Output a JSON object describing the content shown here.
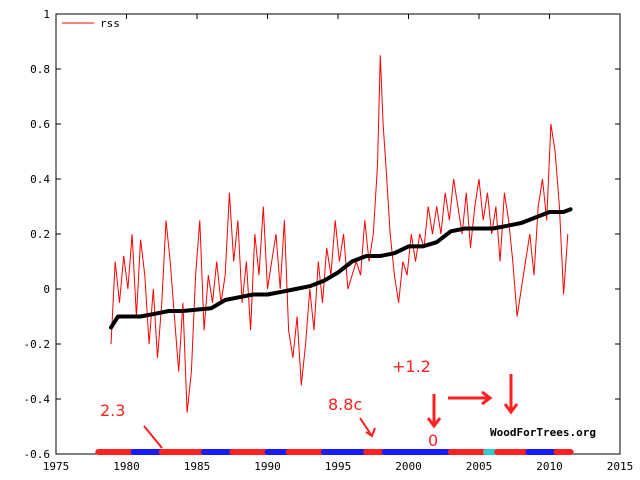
{
  "chart_data": {
    "type": "line",
    "title": "",
    "xlabel": "",
    "ylabel": "",
    "xlim": [
      1975,
      2015
    ],
    "ylim": [
      -0.6,
      1.0
    ],
    "x_ticks": [
      "1975",
      "1980",
      "1985",
      "1990",
      "1995",
      "2000",
      "2005",
      "2010",
      "2015"
    ],
    "y_ticks": [
      "-0.6",
      "-0.4",
      "-0.2",
      "0",
      "0.2",
      "0.4",
      "0.6",
      "0.8",
      "1"
    ],
    "legend": {
      "position": "top-left",
      "entries": [
        "rss"
      ]
    },
    "credit": "WoodForTrees.org",
    "annotations": [
      "2.3",
      "8.8c",
      "+1.2",
      "0"
    ],
    "colors": {
      "rss": "#ff0000",
      "steps": "#000000",
      "bar_red": "#ff2020",
      "bar_blue": "#1a1aff",
      "bar_cyan": "#33cccc"
    },
    "series": [
      {
        "name": "rss",
        "x": [
          1978.9,
          1979.2,
          1979.5,
          1979.8,
          1980.1,
          1980.4,
          1980.7,
          1981.0,
          1981.3,
          1981.6,
          1981.9,
          1982.2,
          1982.5,
          1982.8,
          1983.1,
          1983.4,
          1983.7,
          1984.0,
          1984.3,
          1984.6,
          1984.9,
          1985.2,
          1985.5,
          1985.8,
          1986.1,
          1986.4,
          1986.7,
          1987.0,
          1987.3,
          1987.6,
          1987.9,
          1988.2,
          1988.5,
          1988.8,
          1989.1,
          1989.4,
          1989.7,
          1990.0,
          1990.3,
          1990.6,
          1990.9,
          1991.2,
          1991.5,
          1991.8,
          1992.1,
          1992.4,
          1992.7,
          1993.0,
          1993.3,
          1993.6,
          1993.9,
          1994.2,
          1994.5,
          1994.8,
          1995.1,
          1995.4,
          1995.7,
          1996.0,
          1996.3,
          1996.6,
          1996.9,
          1997.2,
          1997.5,
          1997.8,
          1998.0,
          1998.2,
          1998.4,
          1998.7,
          1999.0,
          1999.3,
          1999.6,
          1999.9,
          2000.2,
          2000.5,
          2000.8,
          2001.1,
          2001.4,
          2001.7,
          2002.0,
          2002.3,
          2002.6,
          2002.9,
          2003.2,
          2003.5,
          2003.8,
          2004.1,
          2004.4,
          2004.7,
          2005.0,
          2005.3,
          2005.6,
          2005.9,
          2006.2,
          2006.5,
          2006.8,
          2007.1,
          2007.4,
          2007.7,
          2008.0,
          2008.3,
          2008.6,
          2008.9,
          2009.2,
          2009.5,
          2009.8,
          2010.1,
          2010.4,
          2010.7,
          2011.0,
          2011.3
        ],
        "values": [
          -0.2,
          0.1,
          -0.05,
          0.12,
          0.0,
          0.2,
          -0.1,
          0.18,
          0.05,
          -0.2,
          0.0,
          -0.25,
          -0.05,
          0.25,
          0.1,
          -0.1,
          -0.3,
          -0.05,
          -0.45,
          -0.3,
          0.05,
          0.25,
          -0.15,
          0.05,
          -0.05,
          0.1,
          -0.05,
          0.05,
          0.35,
          0.1,
          0.25,
          -0.05,
          0.1,
          -0.15,
          0.2,
          0.05,
          0.3,
          0.0,
          0.1,
          0.2,
          0.0,
          0.25,
          -0.15,
          -0.25,
          -0.1,
          -0.35,
          -0.2,
          0.0,
          -0.15,
          0.1,
          -0.05,
          0.15,
          0.05,
          0.25,
          0.1,
          0.2,
          0.0,
          0.05,
          0.1,
          0.05,
          0.25,
          0.1,
          0.2,
          0.45,
          0.85,
          0.6,
          0.45,
          0.2,
          0.05,
          -0.05,
          0.1,
          0.05,
          0.2,
          0.1,
          0.2,
          0.15,
          0.3,
          0.2,
          0.3,
          0.2,
          0.35,
          0.25,
          0.4,
          0.3,
          0.2,
          0.35,
          0.15,
          0.3,
          0.4,
          0.25,
          0.35,
          0.2,
          0.3,
          0.1,
          0.35,
          0.25,
          0.1,
          -0.1,
          0.0,
          0.1,
          0.2,
          0.05,
          0.3,
          0.4,
          0.25,
          0.6,
          0.5,
          0.3,
          -0.02,
          0.2
        ]
      },
      {
        "x": [
          1978.9,
          1979.4,
          1980.0,
          1981.0,
          1982.0,
          1983.0,
          1984.0,
          1985.0,
          1986.0,
          1987.0,
          1988.0,
          1989.0,
          1990.0,
          1991.0,
          1992.0,
          1993.0,
          1994.0,
          1995.0,
          1996.0,
          1997.0,
          1998.0,
          1999.0,
          2000.0,
          2001.0,
          2002.0,
          2003.0,
          2004.0,
          2005.0,
          2006.0,
          2007.0,
          2008.0,
          2009.0,
          2010.0,
          2011.0,
          2011.5
        ],
        "values": [
          -0.14,
          -0.1,
          -0.1,
          -0.1,
          -0.09,
          -0.08,
          -0.08,
          -0.075,
          -0.07,
          -0.04,
          -0.03,
          -0.02,
          -0.02,
          -0.01,
          0.0,
          0.01,
          0.03,
          0.06,
          0.1,
          0.12,
          0.12,
          0.13,
          0.155,
          0.155,
          0.17,
          0.21,
          0.22,
          0.22,
          0.22,
          0.23,
          0.24,
          0.26,
          0.28,
          0.28,
          0.29
        ]
      }
    ],
    "bar_segments": [
      {
        "from": 1978.0,
        "to": 1980.5,
        "color": "bar_red"
      },
      {
        "from": 1980.5,
        "to": 1982.5,
        "color": "bar_blue"
      },
      {
        "from": 1982.5,
        "to": 1985.5,
        "color": "bar_red"
      },
      {
        "from": 1985.5,
        "to": 1987.5,
        "color": "bar_blue"
      },
      {
        "from": 1987.5,
        "to": 1990.0,
        "color": "bar_red"
      },
      {
        "from": 1990.0,
        "to": 1991.5,
        "color": "bar_blue"
      },
      {
        "from": 1991.5,
        "to": 1994.0,
        "color": "bar_red"
      },
      {
        "from": 1994.0,
        "to": 1997.0,
        "color": "bar_blue"
      },
      {
        "from": 1997.0,
        "to": 1998.3,
        "color": "bar_red"
      },
      {
        "from": 1998.3,
        "to": 2003.0,
        "color": "bar_blue"
      },
      {
        "from": 2003.0,
        "to": 2005.5,
        "color": "bar_red"
      },
      {
        "from": 2005.5,
        "to": 2006.3,
        "color": "bar_cyan"
      },
      {
        "from": 2006.3,
        "to": 2008.5,
        "color": "bar_red"
      },
      {
        "from": 2008.5,
        "to": 2010.5,
        "color": "bar_blue"
      },
      {
        "from": 2010.5,
        "to": 2011.5,
        "color": "bar_red"
      }
    ]
  }
}
